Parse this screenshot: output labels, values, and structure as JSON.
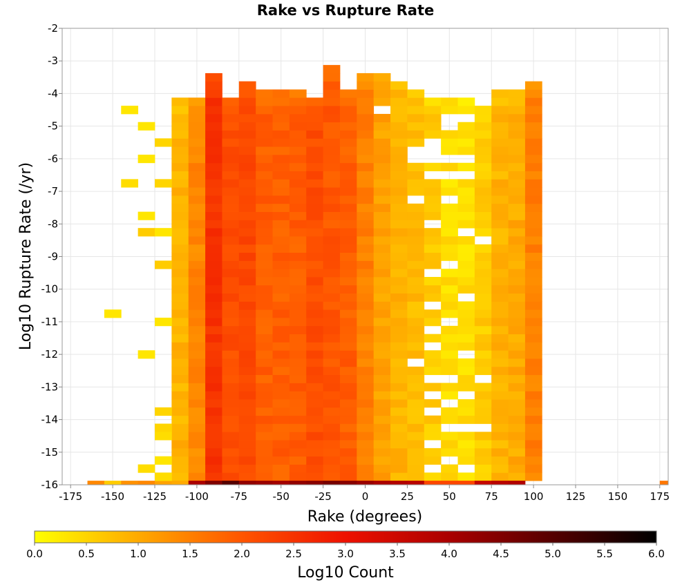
{
  "chart_data": {
    "type": "heatmap",
    "title": "Rake vs Rupture Rate",
    "xlabel": "Rake (degrees)",
    "ylabel": "Log10 Rupture Rate (/yr)",
    "xlim": [
      -180,
      180
    ],
    "ylim": [
      -16,
      -2
    ],
    "x_ticks": [
      -175,
      -150,
      -125,
      -100,
      -75,
      -50,
      -25,
      0,
      25,
      50,
      75,
      100,
      125,
      150,
      175
    ],
    "y_ticks": [
      -2,
      -3,
      -4,
      -5,
      -6,
      -7,
      -8,
      -9,
      -10,
      -11,
      -12,
      -13,
      -14,
      -15,
      -16
    ],
    "grid": true,
    "bin_width_x": 10,
    "bin_height_y": 0.25,
    "colorbar": {
      "label": "Log10 Count",
      "min": 0.0,
      "max": 6.0,
      "ticks": [
        "0.0",
        "0.5",
        "1.0",
        "1.5",
        "2.0",
        "2.5",
        "3.0",
        "3.5",
        "4.0",
        "4.5",
        "5.0",
        "5.5",
        "6.0"
      ],
      "stops": [
        "#ffff00",
        "#ffaa00",
        "#ff5500",
        "#ee1100",
        "#aa0000",
        "#550000",
        "#000000"
      ],
      "placement": "bottom"
    },
    "column_profiles": [
      {
        "x": -160,
        "top": -16,
        "level": 1.4
      },
      {
        "x": -150,
        "top": -16,
        "level": 0.6
      },
      {
        "x": -140,
        "top": -16,
        "level": 1.3
      },
      {
        "x": -130,
        "top": -16,
        "level": 1.4
      },
      {
        "x": -120,
        "top": -16,
        "level": 1.1
      },
      {
        "x": -110,
        "top": -4.25,
        "level": 0.9
      },
      {
        "x": -100,
        "top": -4.25,
        "level": 1.4
      },
      {
        "x": -90,
        "top": -3.5,
        "level": 2.5
      },
      {
        "x": -80,
        "top": -4.25,
        "level": 2.1
      },
      {
        "x": -70,
        "top": -3.75,
        "level": 2.2
      },
      {
        "x": -60,
        "top": -4.0,
        "level": 1.9
      },
      {
        "x": -50,
        "top": -4.0,
        "level": 1.9
      },
      {
        "x": -40,
        "top": -4.0,
        "level": 1.9
      },
      {
        "x": -30,
        "top": -4.25,
        "level": 2.1
      },
      {
        "x": -20,
        "top": -3.25,
        "level": 2.0
      },
      {
        "x": -10,
        "top": -4.0,
        "level": 1.9
      },
      {
        "x": 0,
        "top": -3.5,
        "level": 1.5
      },
      {
        "x": 10,
        "top": -3.5,
        "level": 1.1
      },
      {
        "x": 20,
        "top": -3.75,
        "level": 0.9
      },
      {
        "x": 30,
        "top": -4.0,
        "level": 0.8
      },
      {
        "x": 40,
        "top": -4.25,
        "level": 0.6
      },
      {
        "x": 50,
        "top": -4.25,
        "level": 0.4
      },
      {
        "x": 60,
        "top": -4.25,
        "level": 0.4
      },
      {
        "x": 70,
        "top": -4.5,
        "level": 0.6
      },
      {
        "x": 80,
        "top": -4.0,
        "level": 0.9
      },
      {
        "x": 90,
        "top": -4.0,
        "level": 1.0
      },
      {
        "x": 100,
        "top": -3.75,
        "level": 1.5
      },
      {
        "x": 180,
        "top": -16,
        "level": 1.6
      }
    ],
    "bottom_row": {
      "y": -16,
      "levels": [
        {
          "x": -160,
          "level": 1.4
        },
        {
          "x": -150,
          "level": 0.6
        },
        {
          "x": -140,
          "level": 1.3
        },
        {
          "x": -130,
          "level": 1.4
        },
        {
          "x": -120,
          "level": 1.1
        },
        {
          "x": -110,
          "level": 1.0
        },
        {
          "x": -100,
          "level": 4.0
        },
        {
          "x": -90,
          "level": 4.5
        },
        {
          "x": -80,
          "level": 5.0
        },
        {
          "x": -70,
          "level": 4.3
        },
        {
          "x": -60,
          "level": 4.2
        },
        {
          "x": -50,
          "level": 4.1
        },
        {
          "x": -40,
          "level": 4.3
        },
        {
          "x": -30,
          "level": 4.4
        },
        {
          "x": -20,
          "level": 4.6
        },
        {
          "x": -10,
          "level": 4.4
        },
        {
          "x": 0,
          "level": 4.2
        },
        {
          "x": 10,
          "level": 4.0
        },
        {
          "x": 20,
          "level": 3.9
        },
        {
          "x": 30,
          "level": 3.8
        },
        {
          "x": 40,
          "level": 2.2
        },
        {
          "x": 50,
          "level": 2.2
        },
        {
          "x": 60,
          "level": 2.2
        },
        {
          "x": 70,
          "level": 3.6
        },
        {
          "x": 80,
          "level": 3.8
        },
        {
          "x": 90,
          "level": 3.9
        },
        {
          "x": 180,
          "level": 1.6
        }
      ]
    },
    "isolated_cells": [
      {
        "x": -140,
        "y": -4.5,
        "level": 0.3
      },
      {
        "x": -130,
        "y": -5.0,
        "level": 0.3
      },
      {
        "x": -120,
        "y": -5.5,
        "level": 0.5
      },
      {
        "x": -130,
        "y": -6.0,
        "level": 0.3
      },
      {
        "x": -140,
        "y": -6.75,
        "level": 0.4
      },
      {
        "x": -120,
        "y": -6.75,
        "level": 0.5
      },
      {
        "x": -130,
        "y": -7.75,
        "level": 0.3
      },
      {
        "x": -130,
        "y": -8.25,
        "level": 0.6
      },
      {
        "x": -120,
        "y": -8.25,
        "level": 0.3
      },
      {
        "x": -120,
        "y": -9.25,
        "level": 0.6
      },
      {
        "x": -150,
        "y": -10.75,
        "level": 0.3
      },
      {
        "x": -120,
        "y": -11.0,
        "level": 0.3
      },
      {
        "x": -130,
        "y": -12.0,
        "level": 0.3
      },
      {
        "x": -120,
        "y": -13.75,
        "level": 0.5
      },
      {
        "x": -120,
        "y": -14.25,
        "level": 0.5
      },
      {
        "x": -120,
        "y": -14.5,
        "level": 0.4
      },
      {
        "x": -120,
        "y": -15.25,
        "level": 0.3
      },
      {
        "x": -130,
        "y": -15.5,
        "level": 0.4
      },
      {
        "x": -120,
        "y": -15.75,
        "level": 0.4
      }
    ],
    "empty_cells": [
      {
        "x": 10,
        "y": -4.5
      },
      {
        "x": 50,
        "y": -4.75
      },
      {
        "x": 60,
        "y": -4.75
      },
      {
        "x": 50,
        "y": -5.0
      },
      {
        "x": 40,
        "y": -5.5
      },
      {
        "x": 30,
        "y": -5.75
      },
      {
        "x": 40,
        "y": -5.75
      },
      {
        "x": 30,
        "y": -6.0
      },
      {
        "x": 40,
        "y": -6.0
      },
      {
        "x": 50,
        "y": -6.0
      },
      {
        "x": 60,
        "y": -6.0
      },
      {
        "x": 40,
        "y": -6.5
      },
      {
        "x": 50,
        "y": -6.5
      },
      {
        "x": 60,
        "y": -6.5
      },
      {
        "x": 30,
        "y": -7.25
      },
      {
        "x": 50,
        "y": -7.25
      },
      {
        "x": 40,
        "y": -8.0
      },
      {
        "x": 60,
        "y": -8.25
      },
      {
        "x": 70,
        "y": -8.5
      },
      {
        "x": 40,
        "y": -9.5
      },
      {
        "x": 50,
        "y": -9.25
      },
      {
        "x": 40,
        "y": -10.5
      },
      {
        "x": 60,
        "y": -10.25
      },
      {
        "x": 40,
        "y": -11.25
      },
      {
        "x": 50,
        "y": -11.0
      },
      {
        "x": 40,
        "y": -11.75
      },
      {
        "x": 30,
        "y": -12.25
      },
      {
        "x": 60,
        "y": -12.0
      },
      {
        "x": 40,
        "y": -12.75
      },
      {
        "x": 50,
        "y": -12.75
      },
      {
        "x": 70,
        "y": -12.75
      },
      {
        "x": 40,
        "y": -13.25
      },
      {
        "x": 60,
        "y": -13.25
      },
      {
        "x": 50,
        "y": -13.5
      },
      {
        "x": 40,
        "y": -13.75
      },
      {
        "x": 50,
        "y": -14.25
      },
      {
        "x": 60,
        "y": -14.25
      },
      {
        "x": 70,
        "y": -14.25
      },
      {
        "x": 40,
        "y": -14.75
      },
      {
        "x": 50,
        "y": -15.25
      },
      {
        "x": 40,
        "y": -15.5
      },
      {
        "x": 60,
        "y": -15.5
      }
    ]
  }
}
